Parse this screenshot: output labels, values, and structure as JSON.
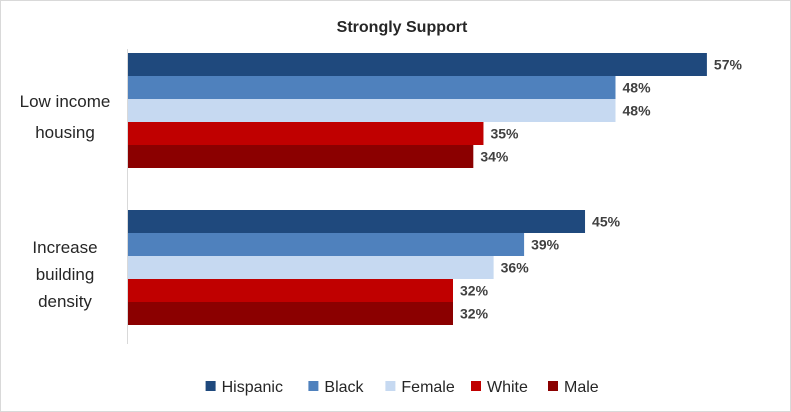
{
  "chart_data": {
    "type": "bar",
    "orientation": "horizontal",
    "title": "Strongly Support",
    "categories": [
      [
        "Low income",
        "housing"
      ],
      [
        "Increase",
        "building",
        "density"
      ]
    ],
    "series": [
      {
        "name": "Hispanic",
        "color": "#1F497D",
        "values": [
          57,
          45
        ],
        "labels": [
          "57%",
          "45%"
        ]
      },
      {
        "name": "Black",
        "color": "#4F81BD",
        "values": [
          48,
          39
        ],
        "labels": [
          "48%",
          "39%"
        ]
      },
      {
        "name": "Female",
        "color": "#C6D9F1",
        "values": [
          48,
          36
        ],
        "labels": [
          "48%",
          "36%"
        ]
      },
      {
        "name": "White",
        "color": "#C00000",
        "values": [
          35,
          32
        ],
        "labels": [
          "35%",
          "32%"
        ]
      },
      {
        "name": "Male",
        "color": "#8B0000",
        "values": [
          34,
          32
        ],
        "labels": [
          "34%",
          "32%"
        ]
      }
    ],
    "xlim": [
      0,
      64
    ],
    "xlabel": "",
    "ylabel": "",
    "grid": false,
    "legend_position": "bottom"
  }
}
